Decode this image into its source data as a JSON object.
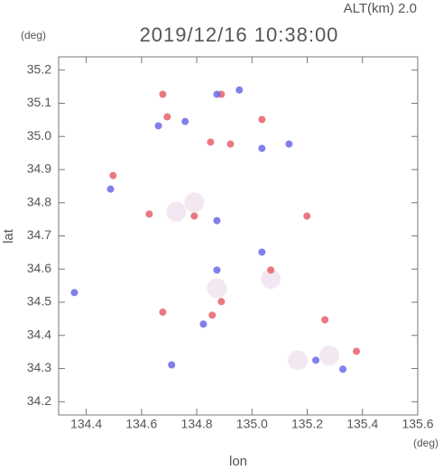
{
  "chart_data": {
    "type": "scatter",
    "title": "2019/12/16 10:38:00",
    "subtitle": "ALT(km) 2.0",
    "y_unit": "(deg)",
    "x_unit": "(deg)",
    "x_label": "lon",
    "y_label": "lat",
    "xlim": [
      134.3,
      135.6
    ],
    "ylim": [
      34.16,
      35.24
    ],
    "xticks": [
      134.4,
      134.6,
      134.8,
      {
        "value": 135,
        "label": "135.0"
      },
      135.2,
      135.4,
      135.6
    ],
    "yticks": [
      34.2,
      34.3,
      34.4,
      34.5,
      34.6,
      34.7,
      34.8,
      34.9,
      {
        "value": 35,
        "label": "35.0"
      },
      35.1,
      35.2
    ],
    "series": [
      {
        "color": "#f2e6f0",
        "x": [
          134.791,
          134.726,
          135.28,
          135.166,
          135.068,
          134.873
        ],
        "values": [
          34.801,
          34.773,
          34.339,
          34.325,
          34.57,
          34.542
        ]
      },
      {
        "color": "#e8606a",
        "x": [
          134.677,
          134.693,
          135.036,
          134.922,
          134.85,
          134.628,
          134.791,
          134.497,
          134.677,
          134.889,
          134.856,
          135.068,
          135.199,
          135.378,
          135.264,
          134.889
        ],
        "values": [
          35.127,
          35.059,
          35.051,
          34.977,
          34.983,
          34.766,
          34.76,
          34.882,
          34.47,
          34.502,
          34.461,
          34.597,
          34.76,
          34.352,
          34.447,
          35.127
        ]
      },
      {
        "color": "#6a6ae8",
        "x": [
          134.661,
          134.758,
          134.873,
          134.954,
          135.036,
          135.134,
          134.873,
          134.488,
          134.357,
          134.873,
          134.824,
          135.036,
          134.709,
          135.231,
          135.329
        ],
        "values": [
          35.032,
          35.045,
          35.127,
          35.14,
          34.964,
          34.977,
          34.746,
          34.841,
          34.529,
          34.597,
          34.434,
          34.651,
          34.311,
          34.325,
          34.298
        ]
      }
    ]
  }
}
